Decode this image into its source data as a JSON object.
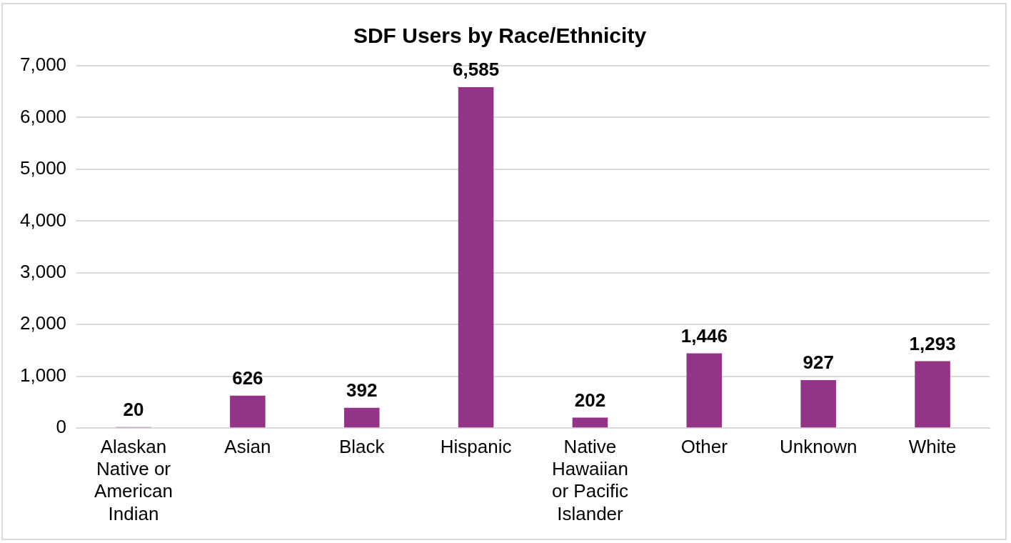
{
  "chart_data": {
    "type": "bar",
    "title": "SDF Users by Race/Ethnicity",
    "categories": [
      "Alaskan Native or American Indian",
      "Asian",
      "Black",
      "Hispanic",
      "Native Hawaiian or Pacific Islander",
      "Other",
      "Unknown",
      "White"
    ],
    "values": [
      20,
      626,
      392,
      6585,
      202,
      1446,
      927,
      1293
    ],
    "value_labels": [
      "20",
      "626",
      "392",
      "6,585",
      "202",
      "1,446",
      "927",
      "1,293"
    ],
    "color": "#943489",
    "ylim": [
      0,
      7000
    ],
    "yticks": [
      0,
      {
        "value": 1000,
        "label": "1,000"
      },
      {
        "value": 2000,
        "label": "2,000"
      },
      {
        "value": 3000,
        "label": "3,000"
      },
      {
        "value": 4000,
        "label": "4,000"
      },
      {
        "value": 5000,
        "label": "5,000"
      },
      {
        "value": 6000,
        "label": "6,000"
      },
      {
        "value": 7000,
        "label": "7,000"
      }
    ],
    "grid": "y"
  }
}
